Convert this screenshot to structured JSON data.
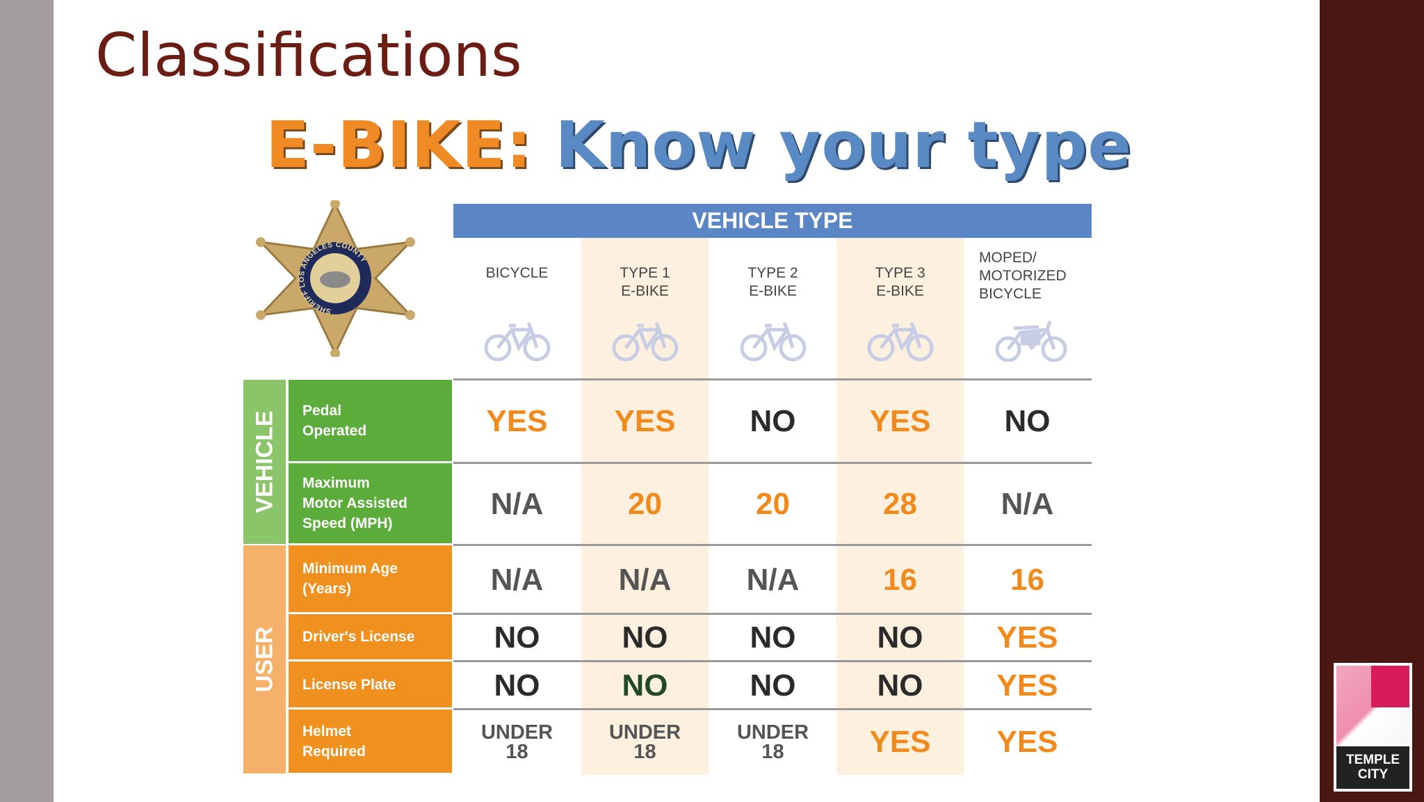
{
  "slide_title": "Classifications",
  "banner": {
    "part1": "E-BIKE:",
    "part2": "Know your type"
  },
  "badge": {
    "text": "SHERIFF LOS ANGELES COUNTY"
  },
  "vehicle_type_header": "VEHICLE TYPE",
  "columns": [
    {
      "label": "BICYCLE",
      "icon": "bicycle-icon"
    },
    {
      "label": "TYPE 1\nE-BIKE",
      "icon": "bicycle-icon"
    },
    {
      "label": "TYPE 2\nE-BIKE",
      "icon": "bicycle-icon"
    },
    {
      "label": "TYPE 3\nE-BIKE",
      "icon": "bicycle-icon"
    },
    {
      "label": "MOPED/\nMOTORIZED\nBICYCLE",
      "icon": "moped-icon"
    }
  ],
  "groups": [
    {
      "label": "VEHICLE",
      "color": "#8cc46a"
    },
    {
      "label": "USER",
      "color": "#f5b06a"
    }
  ],
  "rows": [
    {
      "label": "Pedal\nOperated",
      "group": 0,
      "values": [
        [
          "YES",
          "yes"
        ],
        [
          "YES",
          "yes"
        ],
        [
          "NO",
          "no"
        ],
        [
          "YES",
          "yes"
        ],
        [
          "NO",
          "no"
        ]
      ]
    },
    {
      "label": "Maximum\nMotor Assisted\nSpeed (MPH)",
      "group": 0,
      "values": [
        [
          "N/A",
          "na"
        ],
        [
          "20",
          "yes"
        ],
        [
          "20",
          "yes"
        ],
        [
          "28",
          "yes"
        ],
        [
          "N/A",
          "na"
        ]
      ]
    },
    {
      "label": "Minimum Age\n(Years)",
      "group": 1,
      "values": [
        [
          "N/A",
          "na"
        ],
        [
          "N/A",
          "na"
        ],
        [
          "N/A",
          "na"
        ],
        [
          "16",
          "yes"
        ],
        [
          "16",
          "yes"
        ]
      ]
    },
    {
      "label": "Driver's License",
      "group": 1,
      "values": [
        [
          "NO",
          "no"
        ],
        [
          "NO",
          "no"
        ],
        [
          "NO",
          "no"
        ],
        [
          "NO",
          "no"
        ],
        [
          "YES",
          "yes"
        ]
      ]
    },
    {
      "label": "License Plate",
      "group": 1,
      "values": [
        [
          "NO",
          "no"
        ],
        [
          "NO",
          "green"
        ],
        [
          "NO",
          "no"
        ],
        [
          "NO",
          "no"
        ],
        [
          "YES",
          "yes"
        ]
      ]
    },
    {
      "label": "Helmet\nRequired",
      "group": 1,
      "values": [
        [
          "UNDER\n18",
          "gray"
        ],
        [
          "UNDER\n18",
          "gray"
        ],
        [
          "UNDER\n18",
          "gray"
        ],
        [
          "YES",
          "yes"
        ],
        [
          "YES",
          "yes"
        ]
      ]
    }
  ],
  "logo": {
    "text": "TEMPLE\nCITY"
  },
  "colors": {
    "vehicle_label": "#5cac3c",
    "user_label": "#f0901e",
    "header_blue": "#5a86c6",
    "title": "#6b1d14"
  }
}
